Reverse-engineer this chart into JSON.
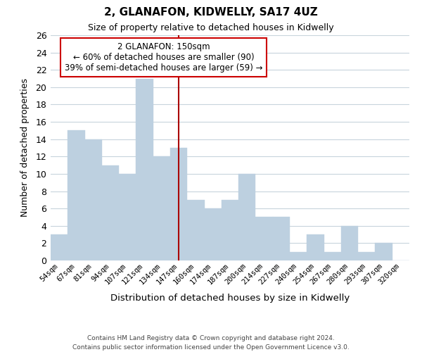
{
  "title": "2, GLANAFON, KIDWELLY, SA17 4UZ",
  "subtitle": "Size of property relative to detached houses in Kidwelly",
  "xlabel": "Distribution of detached houses by size in Kidwelly",
  "ylabel": "Number of detached properties",
  "footer_line1": "Contains HM Land Registry data © Crown copyright and database right 2024.",
  "footer_line2": "Contains public sector information licensed under the Open Government Licence v3.0.",
  "categories": [
    "54sqm",
    "67sqm",
    "81sqm",
    "94sqm",
    "107sqm",
    "121sqm",
    "134sqm",
    "147sqm",
    "160sqm",
    "174sqm",
    "187sqm",
    "200sqm",
    "214sqm",
    "227sqm",
    "240sqm",
    "254sqm",
    "267sqm",
    "280sqm",
    "293sqm",
    "307sqm",
    "320sqm"
  ],
  "values": [
    3,
    15,
    14,
    11,
    10,
    21,
    12,
    13,
    7,
    6,
    7,
    10,
    5,
    5,
    1,
    3,
    1,
    4,
    1,
    2,
    0
  ],
  "bar_color": "#bdd0e0",
  "bar_edge_color": "#bdd0e0",
  "reference_line_color": "#aa0000",
  "annotation_title": "2 GLANAFON: 150sqm",
  "annotation_line1": "← 60% of detached houses are smaller (90)",
  "annotation_line2": "39% of semi-detached houses are larger (59) →",
  "annotation_box_edge": "#cc0000",
  "ylim": [
    0,
    26
  ],
  "yticks": [
    0,
    2,
    4,
    6,
    8,
    10,
    12,
    14,
    16,
    18,
    20,
    22,
    24,
    26
  ],
  "background_color": "#ffffff",
  "grid_color": "#c8d4dc"
}
